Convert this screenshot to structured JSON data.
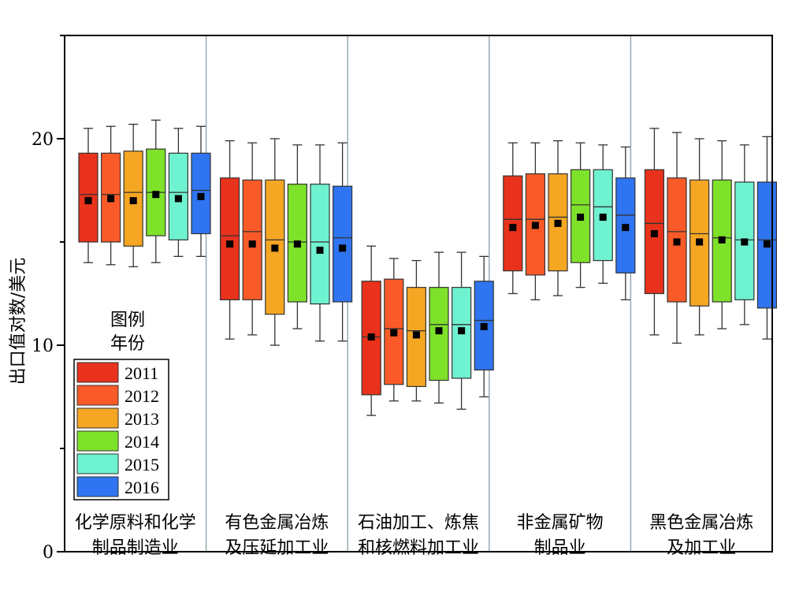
{
  "chart_data": {
    "type": "box",
    "ylabel": "出口值对数/美元",
    "ylim": [
      0,
      25
    ],
    "yticks": [
      0,
      10,
      20
    ],
    "grid": false,
    "legend": {
      "title_line1": "图例",
      "title_line2": "年份",
      "position": "left-middle"
    },
    "categories": [
      [
        "化学原料和化学",
        "制品制造业"
      ],
      [
        "有色金属冶炼",
        "及压延加工业"
      ],
      [
        "石油加工、炼焦",
        "和核燃料加工业"
      ],
      [
        "非金属矿物",
        "制品业"
      ],
      [
        "黑色金属冶炼",
        "及加工业"
      ]
    ],
    "series": [
      {
        "name": "2011",
        "color": "#e8321c"
      },
      {
        "name": "2012",
        "color": "#fa5a28"
      },
      {
        "name": "2013",
        "color": "#f5a623"
      },
      {
        "name": "2014",
        "color": "#7ee12a"
      },
      {
        "name": "2015",
        "color": "#6ff2cf"
      },
      {
        "name": "2016",
        "color": "#2f74f0"
      }
    ],
    "boxes": [
      [
        {
          "min": 14.0,
          "q1": 15.0,
          "median": 17.3,
          "q3": 19.3,
          "max": 20.5,
          "mean": 17.0
        },
        {
          "min": 13.9,
          "q1": 15.0,
          "median": 17.3,
          "q3": 19.3,
          "max": 20.6,
          "mean": 17.1
        },
        {
          "min": 13.8,
          "q1": 14.8,
          "median": 17.4,
          "q3": 19.4,
          "max": 20.7,
          "mean": 17.0
        },
        {
          "min": 14.0,
          "q1": 15.3,
          "median": 17.4,
          "q3": 19.5,
          "max": 20.9,
          "mean": 17.3
        },
        {
          "min": 14.3,
          "q1": 15.1,
          "median": 17.4,
          "q3": 19.3,
          "max": 20.5,
          "mean": 17.1
        },
        {
          "min": 14.3,
          "q1": 15.4,
          "median": 17.5,
          "q3": 19.3,
          "max": 20.6,
          "mean": 17.2
        }
      ],
      [
        {
          "min": 10.3,
          "q1": 12.2,
          "median": 15.3,
          "q3": 18.1,
          "max": 19.9,
          "mean": 14.9
        },
        {
          "min": 10.5,
          "q1": 12.2,
          "median": 15.5,
          "q3": 18.0,
          "max": 19.8,
          "mean": 14.9
        },
        {
          "min": 10.0,
          "q1": 11.5,
          "median": 15.1,
          "q3": 18.0,
          "max": 20.0,
          "mean": 14.7
        },
        {
          "min": 10.8,
          "q1": 12.1,
          "median": 15.0,
          "q3": 17.8,
          "max": 19.7,
          "mean": 14.9
        },
        {
          "min": 10.2,
          "q1": 12.0,
          "median": 15.0,
          "q3": 17.8,
          "max": 19.7,
          "mean": 14.6
        },
        {
          "min": 10.2,
          "q1": 12.1,
          "median": 15.2,
          "q3": 17.7,
          "max": 19.8,
          "mean": 14.7
        }
      ],
      [
        {
          "min": 6.6,
          "q1": 7.6,
          "median": 10.4,
          "q3": 13.1,
          "max": 14.8,
          "mean": 10.4
        },
        {
          "min": 7.3,
          "q1": 8.1,
          "median": 10.8,
          "q3": 13.2,
          "max": 14.2,
          "mean": 10.6
        },
        {
          "min": 7.3,
          "q1": 8.0,
          "median": 10.7,
          "q3": 12.8,
          "max": 14.1,
          "mean": 10.5
        },
        {
          "min": 7.2,
          "q1": 8.3,
          "median": 11.0,
          "q3": 12.8,
          "max": 14.5,
          "mean": 10.7
        },
        {
          "min": 6.9,
          "q1": 8.4,
          "median": 11.0,
          "q3": 12.8,
          "max": 14.5,
          "mean": 10.7
        },
        {
          "min": 7.5,
          "q1": 8.8,
          "median": 11.2,
          "q3": 13.1,
          "max": 14.3,
          "mean": 10.9
        }
      ],
      [
        {
          "min": 12.5,
          "q1": 13.6,
          "median": 16.1,
          "q3": 18.2,
          "max": 19.8,
          "mean": 15.7
        },
        {
          "min": 12.2,
          "q1": 13.4,
          "median": 16.1,
          "q3": 18.3,
          "max": 19.8,
          "mean": 15.8
        },
        {
          "min": 12.4,
          "q1": 13.6,
          "median": 16.2,
          "q3": 18.3,
          "max": 19.9,
          "mean": 15.9
        },
        {
          "min": 12.8,
          "q1": 14.0,
          "median": 16.8,
          "q3": 18.5,
          "max": 19.8,
          "mean": 16.2
        },
        {
          "min": 13.0,
          "q1": 14.1,
          "median": 16.7,
          "q3": 18.5,
          "max": 19.7,
          "mean": 16.2
        },
        {
          "min": 12.2,
          "q1": 13.5,
          "median": 16.3,
          "q3": 18.1,
          "max": 19.6,
          "mean": 15.7
        }
      ],
      [
        {
          "min": 10.5,
          "q1": 12.5,
          "median": 15.9,
          "q3": 18.5,
          "max": 20.5,
          "mean": 15.4
        },
        {
          "min": 10.1,
          "q1": 12.1,
          "median": 15.5,
          "q3": 18.1,
          "max": 20.3,
          "mean": 15.0
        },
        {
          "min": 10.5,
          "q1": 11.9,
          "median": 15.4,
          "q3": 18.0,
          "max": 20.0,
          "mean": 15.0
        },
        {
          "min": 10.8,
          "q1": 12.1,
          "median": 15.2,
          "q3": 18.0,
          "max": 19.9,
          "mean": 15.1
        },
        {
          "min": 11.0,
          "q1": 12.2,
          "median": 15.1,
          "q3": 17.9,
          "max": 19.7,
          "mean": 15.0
        },
        {
          "min": 10.3,
          "q1": 11.8,
          "median": 15.1,
          "q3": 17.9,
          "max": 20.1,
          "mean": 14.9
        }
      ]
    ]
  }
}
